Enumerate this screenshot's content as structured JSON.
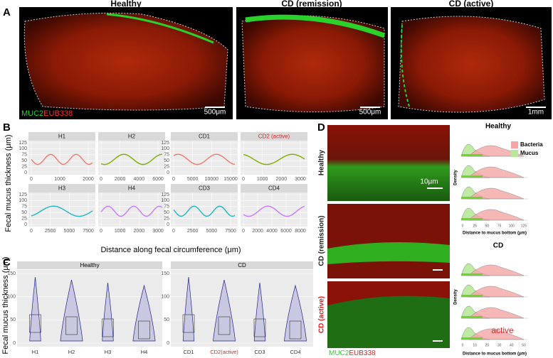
{
  "panel_a": {
    "letter": "A",
    "titles": [
      "Healthy",
      "CD (remission)",
      "CD (active)"
    ],
    "stain": [
      "MUC2",
      "EUB338"
    ],
    "scale_bars": [
      "500μm",
      "500μm",
      "1mm"
    ]
  },
  "panel_b": {
    "letter": "B",
    "y_label": "Fecal mucus thickness (μm)",
    "x_label": "Distance along fecal circumference (μm)",
    "y_ticks": [
      "125",
      "100",
      "75",
      "50",
      "25",
      "0"
    ],
    "facets": [
      {
        "label": "H1",
        "color": "#f07a6e",
        "x_ticks": [
          "0",
          "1000",
          "2000"
        ]
      },
      {
        "label": "H2",
        "color": "#7cae00",
        "x_ticks": [
          "0",
          "2000",
          "4000",
          "6000"
        ]
      },
      {
        "label": "H3",
        "color": "#1fb7c2",
        "x_ticks": [
          "0",
          "2500",
          "5000",
          "7500"
        ]
      },
      {
        "label": "H4",
        "color": "#c77cff",
        "x_ticks": [
          "0",
          "1000",
          "2000",
          "3000"
        ]
      },
      {
        "label": "CD1",
        "color": "#f07a6e",
        "x_ticks": [
          "0",
          "5000",
          "10000",
          "15000"
        ]
      },
      {
        "label": "CD2 (active)",
        "color": "#7cae00",
        "label_color": "#e02020",
        "x_ticks": [
          "0",
          "1000",
          "2000",
          "3000"
        ]
      },
      {
        "label": "CD3",
        "color": "#1fb7c2",
        "x_ticks": [
          "0",
          "2500",
          "5000",
          "7500"
        ]
      },
      {
        "label": "CD4",
        "color": "#c77cff",
        "x_ticks": [
          "0",
          "2000",
          "4000",
          "6000",
          "8000"
        ]
      }
    ]
  },
  "panel_c": {
    "letter": "C",
    "y_label": "Fecal mucus thickness (μm)",
    "y_ticks": [
      "150",
      "100",
      "50",
      "0"
    ],
    "groups": [
      {
        "label": "Healthy",
        "categories": [
          "H1",
          "H2",
          "H3",
          "H4"
        ]
      },
      {
        "label": "CD",
        "categories": [
          "CD1",
          "CD2(active)",
          "CD3",
          "CD4"
        ],
        "highlight": "CD2(active)",
        "highlight_color": "#e02020"
      }
    ]
  },
  "panel_d": {
    "letter": "D",
    "rows": [
      "Healthy",
      "CD (remission)",
      "CD (active)"
    ],
    "active_color": "#e02020",
    "scale_bar": "10μm",
    "stain": [
      "MUC2",
      "EUB338"
    ],
    "legend": [
      "Bacteria",
      "Mucus"
    ],
    "x_label": "Distance to mucus bottom (μm)",
    "y_label": "Density",
    "groups": [
      {
        "title": "Healthy",
        "x_ticks": [
          "0",
          "25",
          "50",
          "75",
          "100",
          "125"
        ]
      },
      {
        "title": "CD",
        "x_ticks": [
          "0",
          "10",
          "20",
          "30",
          "40",
          "50"
        ],
        "annotation": "active"
      }
    ]
  }
}
